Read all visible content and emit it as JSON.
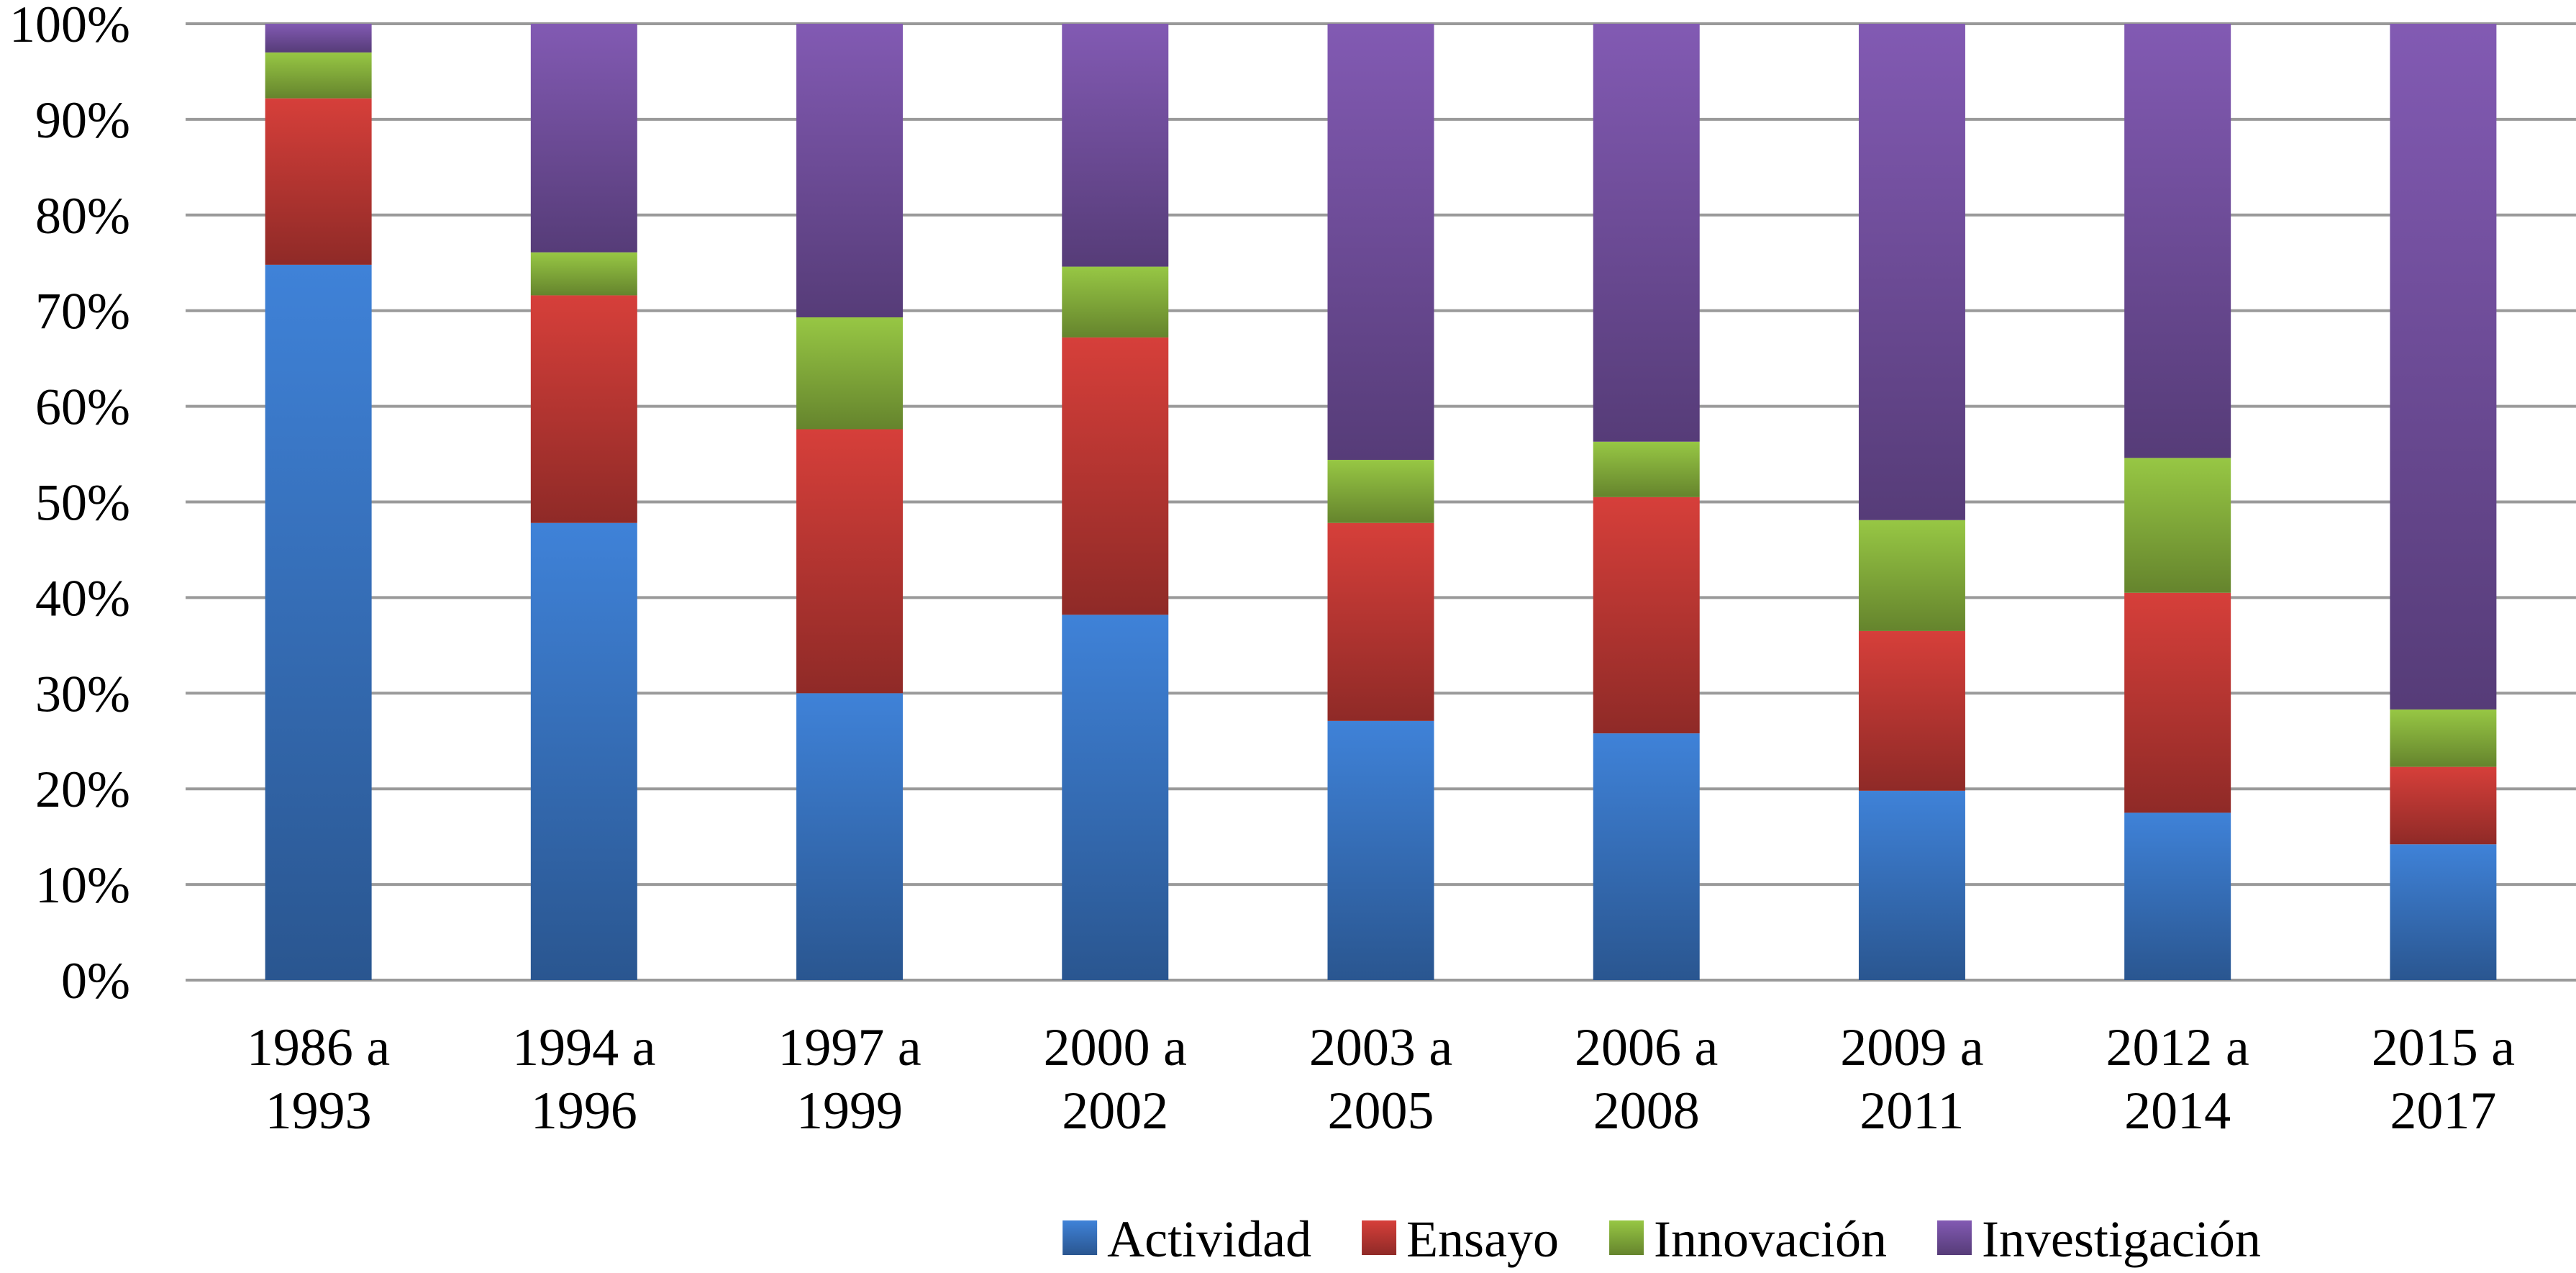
{
  "chart_data": {
    "type": "bar",
    "stacked": "percent",
    "title": "",
    "xlabel": "",
    "ylabel": "",
    "ylim": [
      0,
      100
    ],
    "grid": true,
    "legend_position": "bottom",
    "y_tick_labels": [
      "0%",
      "10%",
      "20%",
      "30%",
      "40%",
      "50%",
      "60%",
      "70%",
      "80%",
      "90%",
      "100%"
    ],
    "categories": [
      [
        "1986 a",
        "1993"
      ],
      [
        "1994 a",
        "1996"
      ],
      [
        "1997 a",
        "1999"
      ],
      [
        "2000 a",
        "2002"
      ],
      [
        "2003 a",
        "2005"
      ],
      [
        "2006 a",
        "2008"
      ],
      [
        "2009 a",
        "2011"
      ],
      [
        "2012 a",
        "2014"
      ],
      [
        "2015 a",
        "2017"
      ]
    ],
    "series": [
      {
        "name": "Actividad",
        "color": "#3a78c8",
        "values": [
          74.8,
          47.8,
          30.0,
          38.2,
          27.1,
          25.8,
          19.8,
          17.5,
          14.2
        ]
      },
      {
        "name": "Ensayo",
        "color": "#c63a36",
        "values": [
          17.4,
          23.8,
          27.6,
          29.0,
          20.7,
          24.7,
          16.7,
          23.0,
          8.1
        ]
      },
      {
        "name": "Innovación",
        "color": "#8cb83f",
        "values": [
          4.8,
          4.5,
          11.7,
          7.4,
          6.6,
          5.8,
          11.6,
          14.1,
          6.0
        ]
      },
      {
        "name": "Investigación",
        "color": "#7853a6",
        "values": [
          3.0,
          23.9,
          30.7,
          25.4,
          45.6,
          43.7,
          51.9,
          45.4,
          71.7
        ]
      }
    ]
  }
}
